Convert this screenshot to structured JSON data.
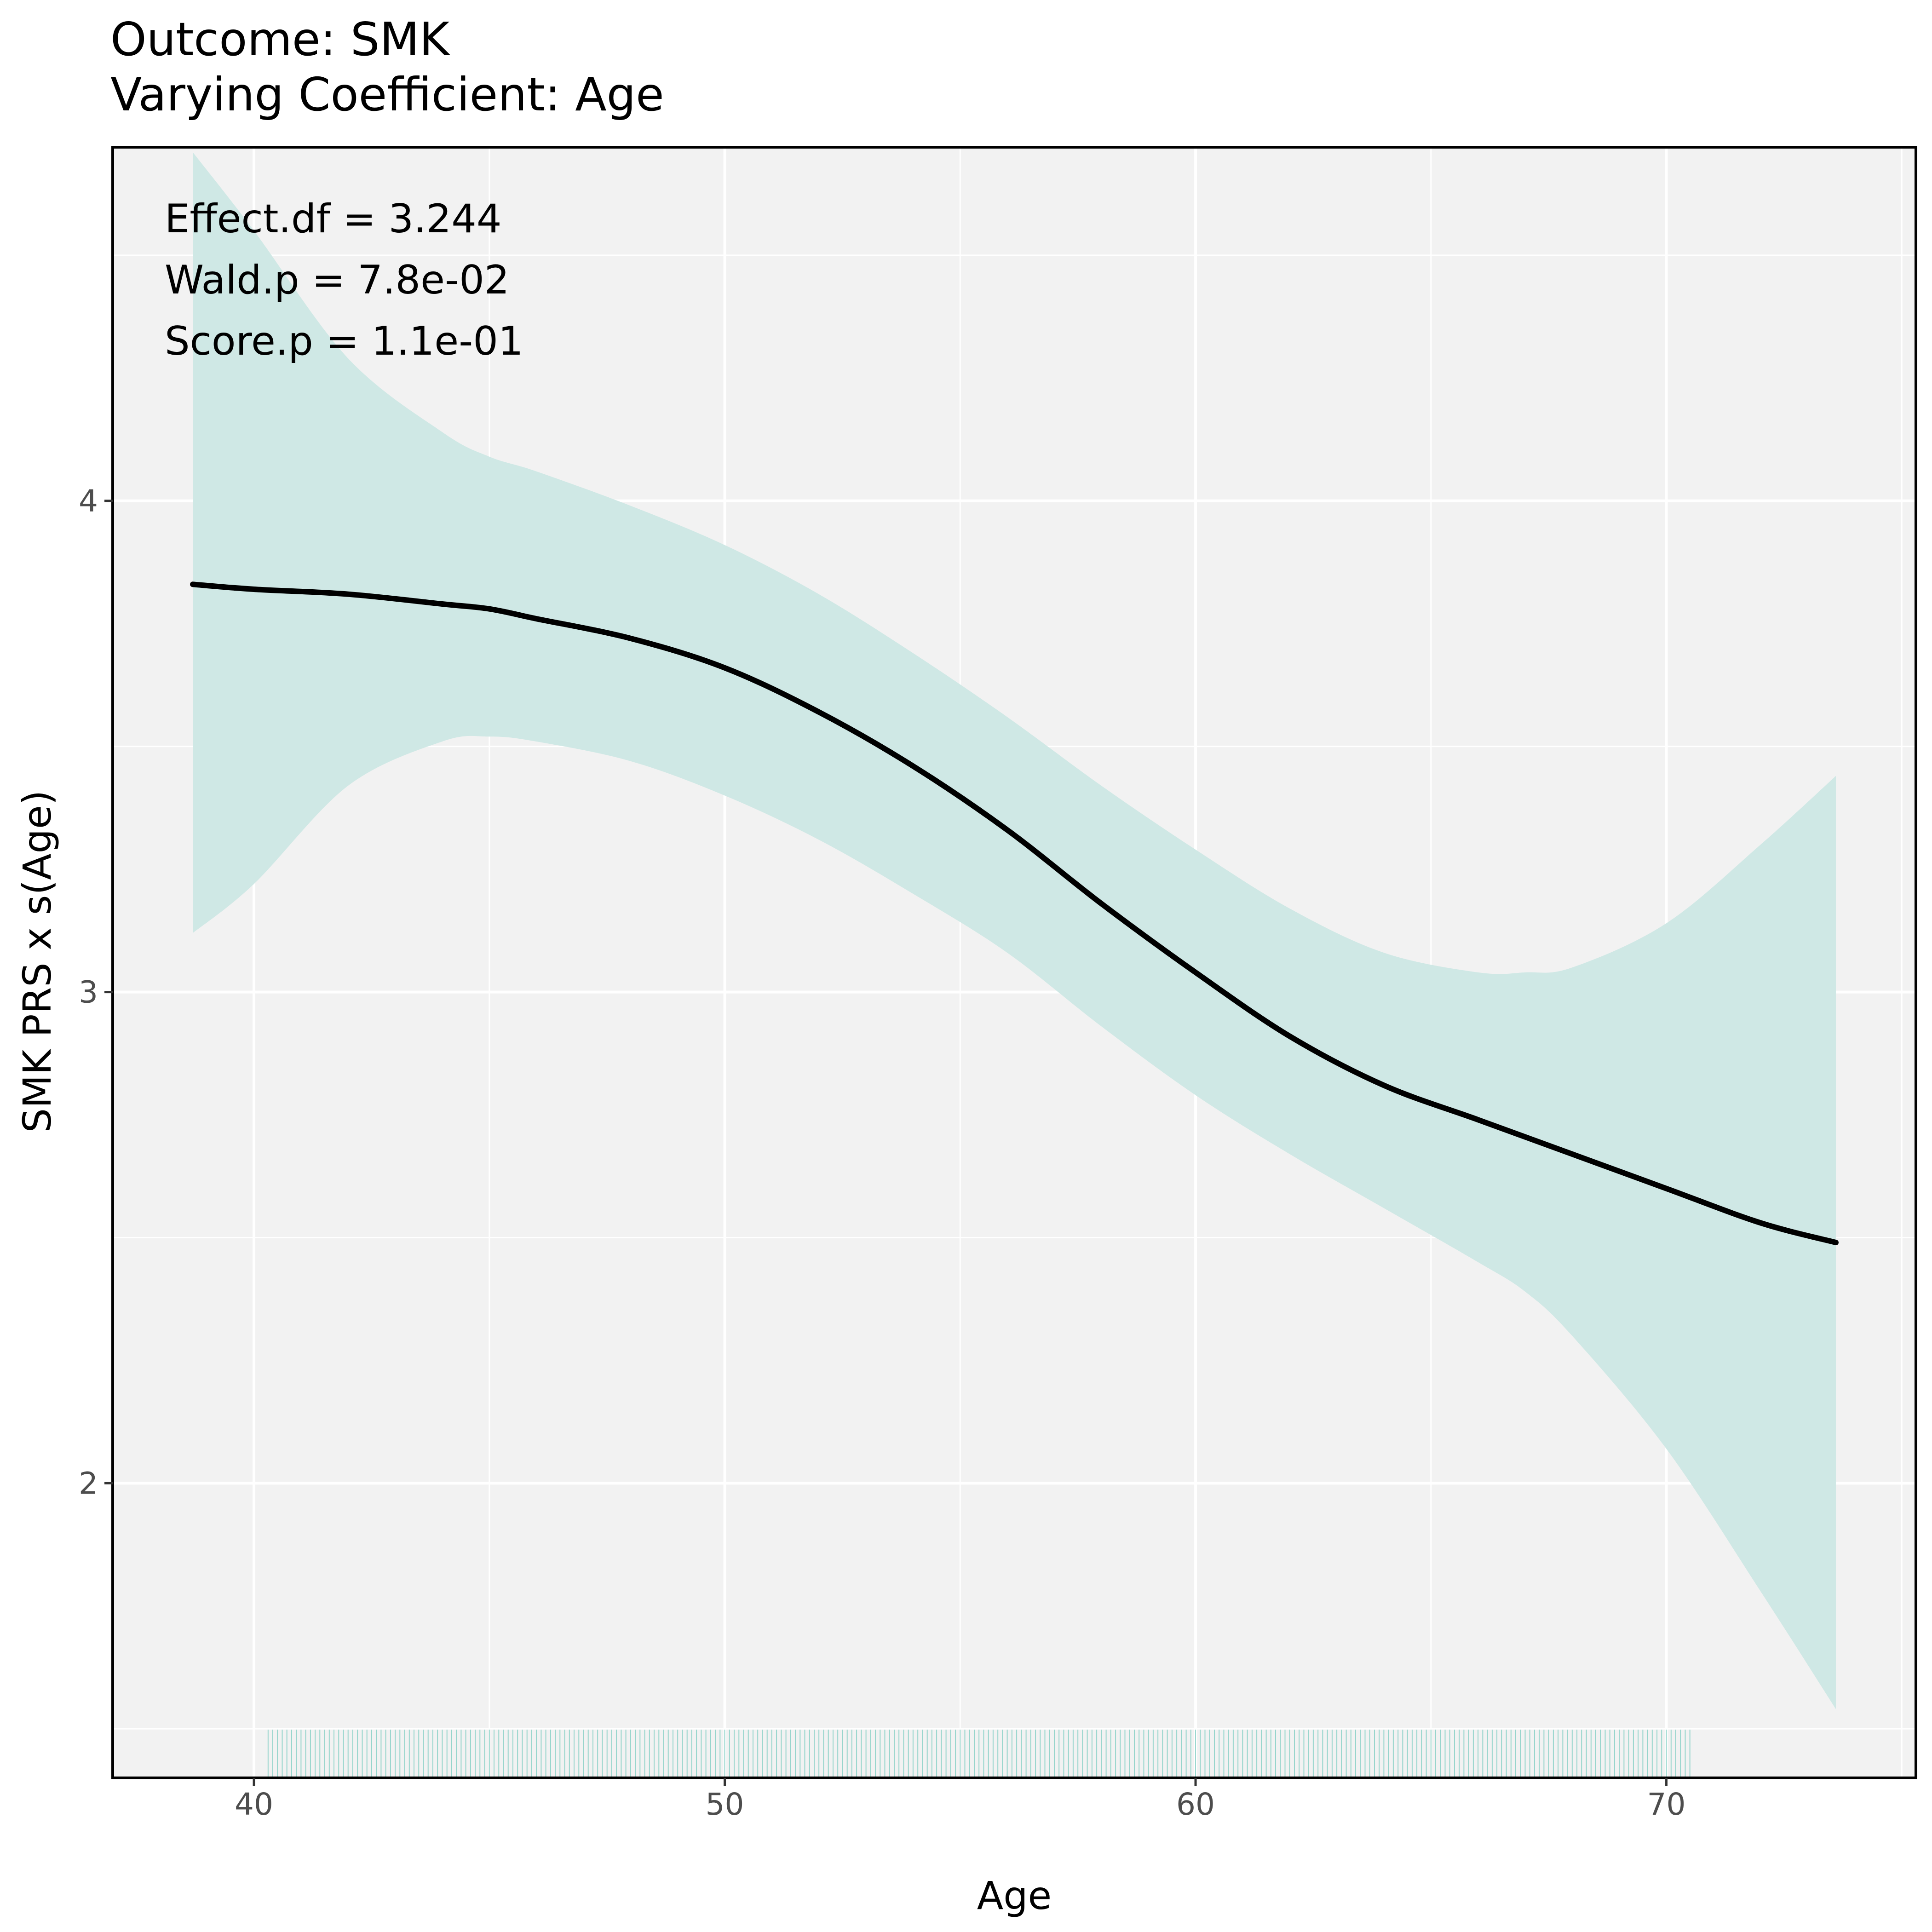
{
  "chart_data": {
    "type": "line",
    "title": "Outcome: SMK",
    "subtitle": "Varying Coefficient: Age",
    "xlabel": "Age",
    "ylabel": "SMK PRS x s(Age)",
    "xlim": [
      37,
      75.3
    ],
    "ylim": [
      1.4,
      4.72
    ],
    "xticks": [
      40,
      50,
      60,
      70
    ],
    "yticks": [
      2,
      3,
      4
    ],
    "grid": true,
    "annotations": [
      "Effect.df = 3.244",
      "Wald.p = 7.8e-02",
      "Score.p = 1.1e-01"
    ],
    "series": [
      {
        "x": [
          38.7,
          40,
          42,
          44,
          45,
          46,
          48,
          50,
          52,
          54,
          56,
          58,
          60,
          62,
          64,
          66,
          68,
          70,
          72,
          73.6
        ],
        "values": [
          3.83,
          3.82,
          3.81,
          3.79,
          3.78,
          3.76,
          3.72,
          3.66,
          3.57,
          3.46,
          3.33,
          3.18,
          3.04,
          2.91,
          2.81,
          2.74,
          2.67,
          2.6,
          2.53,
          2.49
        ]
      }
    ],
    "band": {
      "x": [
        38.7,
        40,
        42,
        44,
        45,
        46,
        48,
        50,
        52,
        54,
        56,
        58,
        60,
        62,
        64,
        66,
        67,
        68,
        70,
        72,
        73.6
      ],
      "upper": [
        4.71,
        4.55,
        4.29,
        4.14,
        4.09,
        4.06,
        3.99,
        3.91,
        3.81,
        3.69,
        3.56,
        3.42,
        3.29,
        3.17,
        3.08,
        3.04,
        3.04,
        3.05,
        3.14,
        3.3,
        3.44
      ],
      "lower": [
        3.12,
        3.22,
        3.42,
        3.51,
        3.52,
        3.51,
        3.47,
        3.4,
        3.31,
        3.2,
        3.08,
        2.93,
        2.79,
        2.67,
        2.56,
        2.45,
        2.39,
        2.3,
        2.07,
        1.78,
        1.54
      ]
    },
    "rug": {
      "x_range": [
        40.3,
        70.5
      ]
    },
    "colors": {
      "panel_background": "#f2f2f2",
      "grid": "#ffffff",
      "band_fill": "#cfe8e5",
      "line": "#000000",
      "rug": "#7fcdc2",
      "border": "#000000"
    }
  }
}
